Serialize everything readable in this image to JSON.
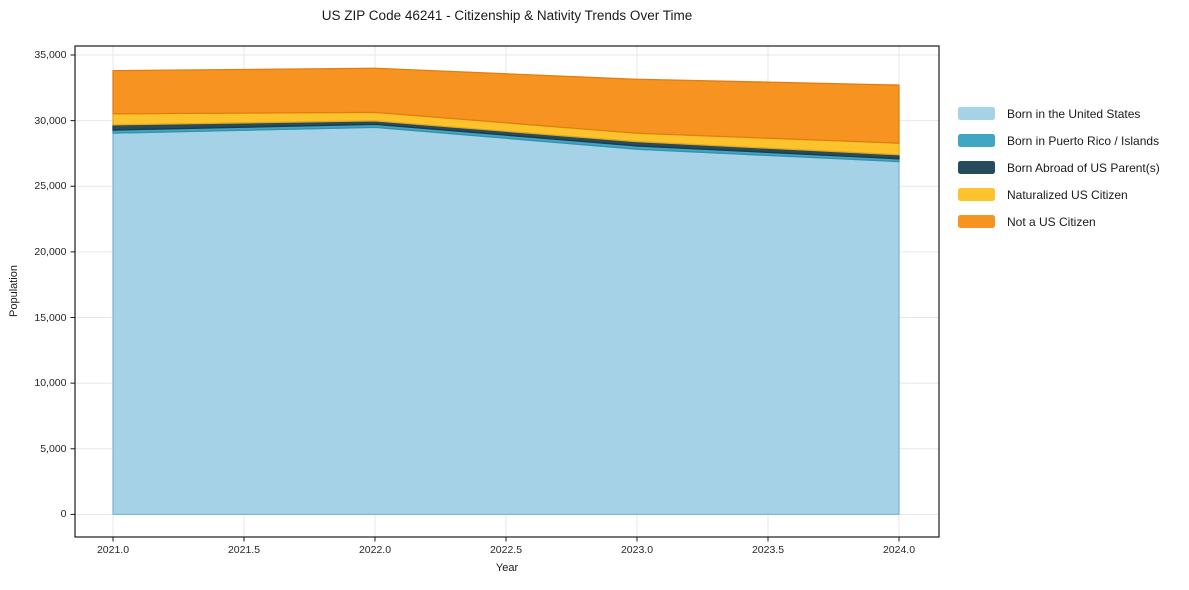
{
  "chart_data": {
    "type": "area",
    "stacked": true,
    "title": "US ZIP Code 46241 - Citizenship & Nativity Trends Over Time",
    "xlabel": "Year",
    "ylabel": "Population",
    "x": [
      2021,
      2022,
      2023,
      2024
    ],
    "series": [
      {
        "name": "Born in the United States",
        "color": "#a6d2e8",
        "edge": "#7eb8d4",
        "values": [
          29050,
          29490,
          27820,
          26880
        ]
      },
      {
        "name": "Born in Puerto Rico / Islands",
        "color": "#41a6c3",
        "edge": "#3492ae",
        "values": [
          230,
          230,
          250,
          210
        ]
      },
      {
        "name": "Born Abroad of US Parent(s)",
        "color": "#254b5c",
        "edge": "#1c3a48",
        "values": [
          400,
          260,
          330,
          310
        ]
      },
      {
        "name": "Naturalized US Citizen",
        "color": "#fcc32d",
        "edge": "#e3a91b",
        "values": [
          840,
          650,
          640,
          890
        ]
      },
      {
        "name": "Not a US Citizen",
        "color": "#f79320",
        "edge": "#e07f10",
        "values": [
          3290,
          3360,
          4110,
          4420
        ]
      }
    ],
    "totals_by_year": [
      33810,
      33990,
      33150,
      32710
    ],
    "xlim": [
      2020.85,
      2024.15
    ],
    "ylim": [
      0,
      35000
    ],
    "grid": true,
    "legend_position": "right",
    "x_ticks": [
      {
        "value": 2021.0,
        "label": "2021.0"
      },
      {
        "value": 2021.5,
        "label": "2021.5"
      },
      {
        "value": 2022.0,
        "label": "2022.0"
      },
      {
        "value": 2022.5,
        "label": "2022.5"
      },
      {
        "value": 2023.0,
        "label": "2023.0"
      },
      {
        "value": 2023.5,
        "label": "2023.5"
      },
      {
        "value": 2024.0,
        "label": "2024.0"
      }
    ],
    "y_ticks": [
      {
        "value": 0,
        "label": "0"
      },
      {
        "value": 5000,
        "label": "5,000"
      },
      {
        "value": 10000,
        "label": "10,000"
      },
      {
        "value": 15000,
        "label": "15,000"
      },
      {
        "value": 20000,
        "label": "20,000"
      },
      {
        "value": 25000,
        "label": "25,000"
      },
      {
        "value": 30000,
        "label": "30,000"
      },
      {
        "value": 35000,
        "label": "35,000"
      }
    ]
  }
}
